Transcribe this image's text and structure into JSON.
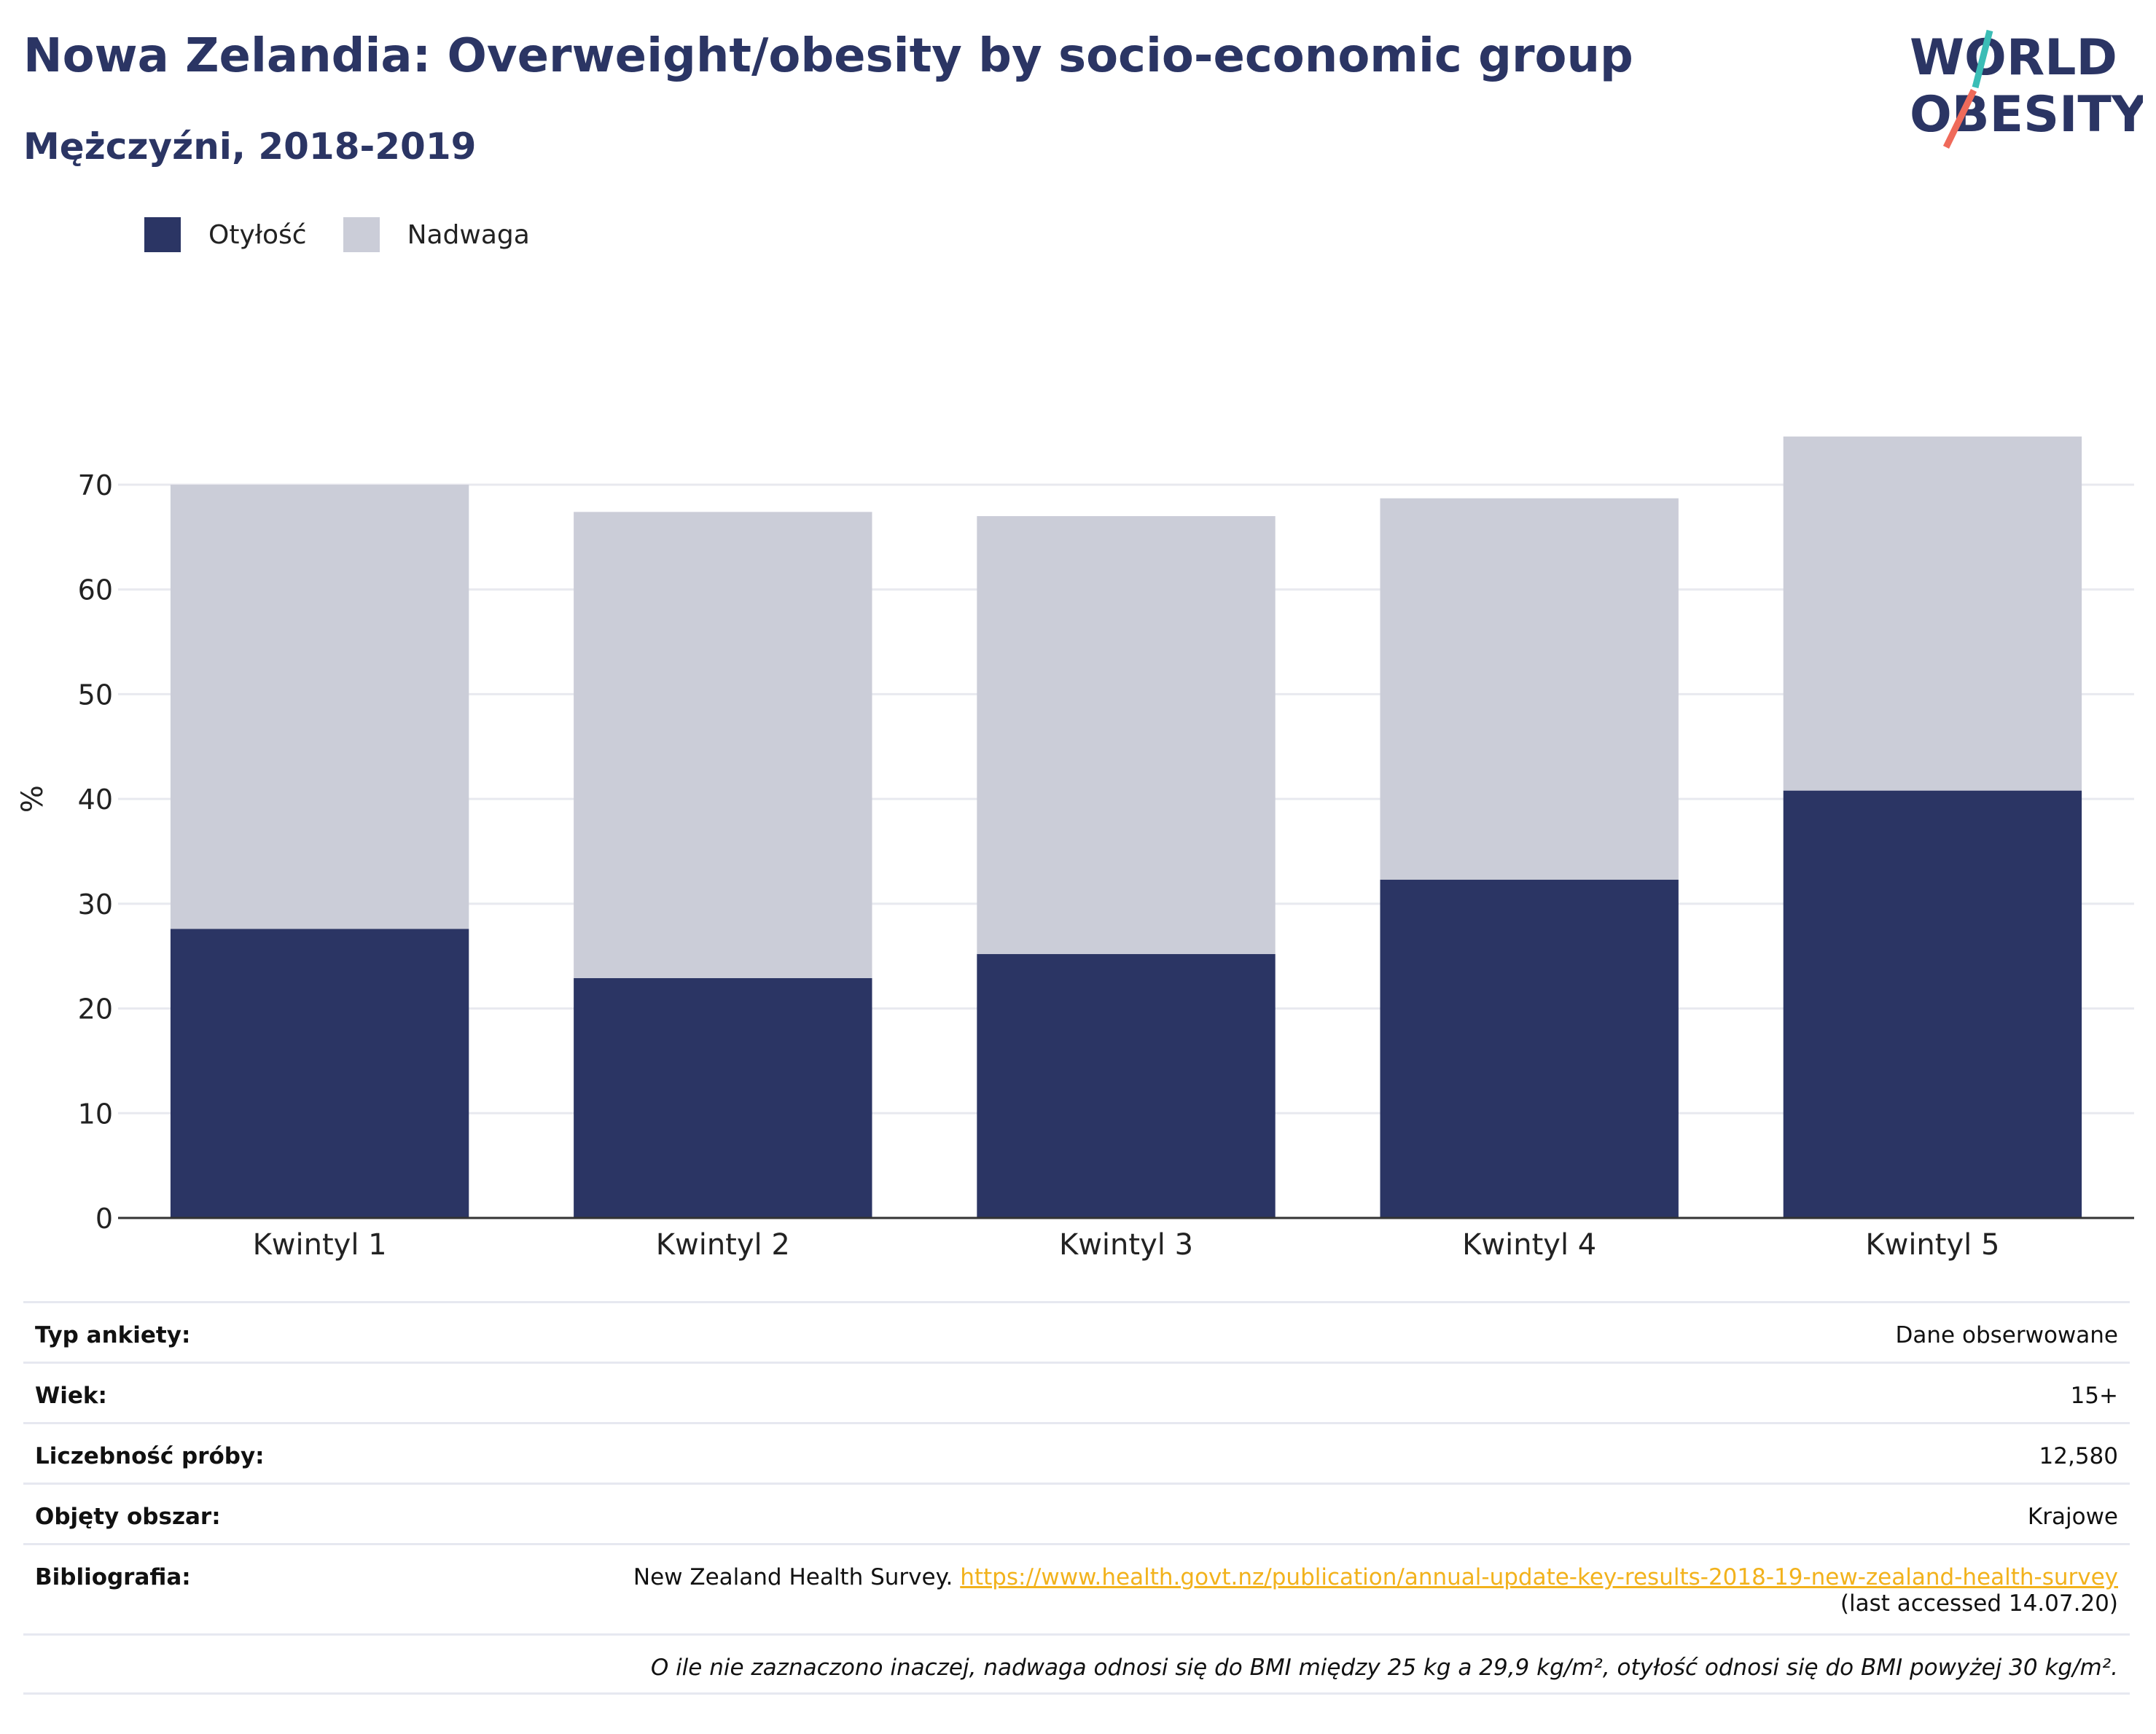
{
  "header": {
    "title": "Nowa Zelandia: Overweight/obesity by socio-economic group",
    "subtitle": "Mężczyźni, 2018-2019"
  },
  "logo": {
    "line1": "WORLD",
    "line2": "OBESITY",
    "accent_teal": "#3bbdb6",
    "accent_coral": "#ef6a5a",
    "text_color": "#2b3564"
  },
  "colors": {
    "obesity": "#2b3564",
    "overweight": "#cbcdd8",
    "link": "#f2b21c"
  },
  "chart_data": {
    "type": "bar",
    "stacked": true,
    "categories": [
      "Kwintyl 1",
      "Kwintyl 2",
      "Kwintyl 3",
      "Kwintyl 4",
      "Kwintyl 5"
    ],
    "series": [
      {
        "name": "Otyłość",
        "values": [
          27.6,
          22.9,
          25.2,
          32.3,
          40.8
        ]
      },
      {
        "name": "Nadwaga",
        "values": [
          42.4,
          44.5,
          41.8,
          36.4,
          33.8
        ]
      }
    ],
    "ylabel": "%",
    "yticks": [
      0,
      10,
      20,
      30,
      40,
      50,
      60,
      70
    ],
    "ylim": [
      0,
      78
    ],
    "grid": true,
    "legend_position": "top-left"
  },
  "info": {
    "survey_type": {
      "label": "Typ ankiety:",
      "value": "Dane obserwowane"
    },
    "age": {
      "label": "Wiek:",
      "value": "15+"
    },
    "sample_size": {
      "label": "Liczebność próby:",
      "value": "12,580"
    },
    "area": {
      "label": "Objęty obszar:",
      "value": "Krajowe"
    },
    "bibliography": {
      "label": "Bibliografia:",
      "source": "New Zealand Health Survey. ",
      "url": "https://www.health.govt.nz/publication/annual-update-key-results-2018-19-new-zealand-health-survey",
      "accessed": "(last accessed 14.07.20)"
    },
    "footnote": "O ile nie zaznaczono inaczej, nadwaga odnosi się do BMI między 25 kg a 29,9 kg/m², otyłość odnosi się do BMI powyżej 30 kg/m²."
  }
}
